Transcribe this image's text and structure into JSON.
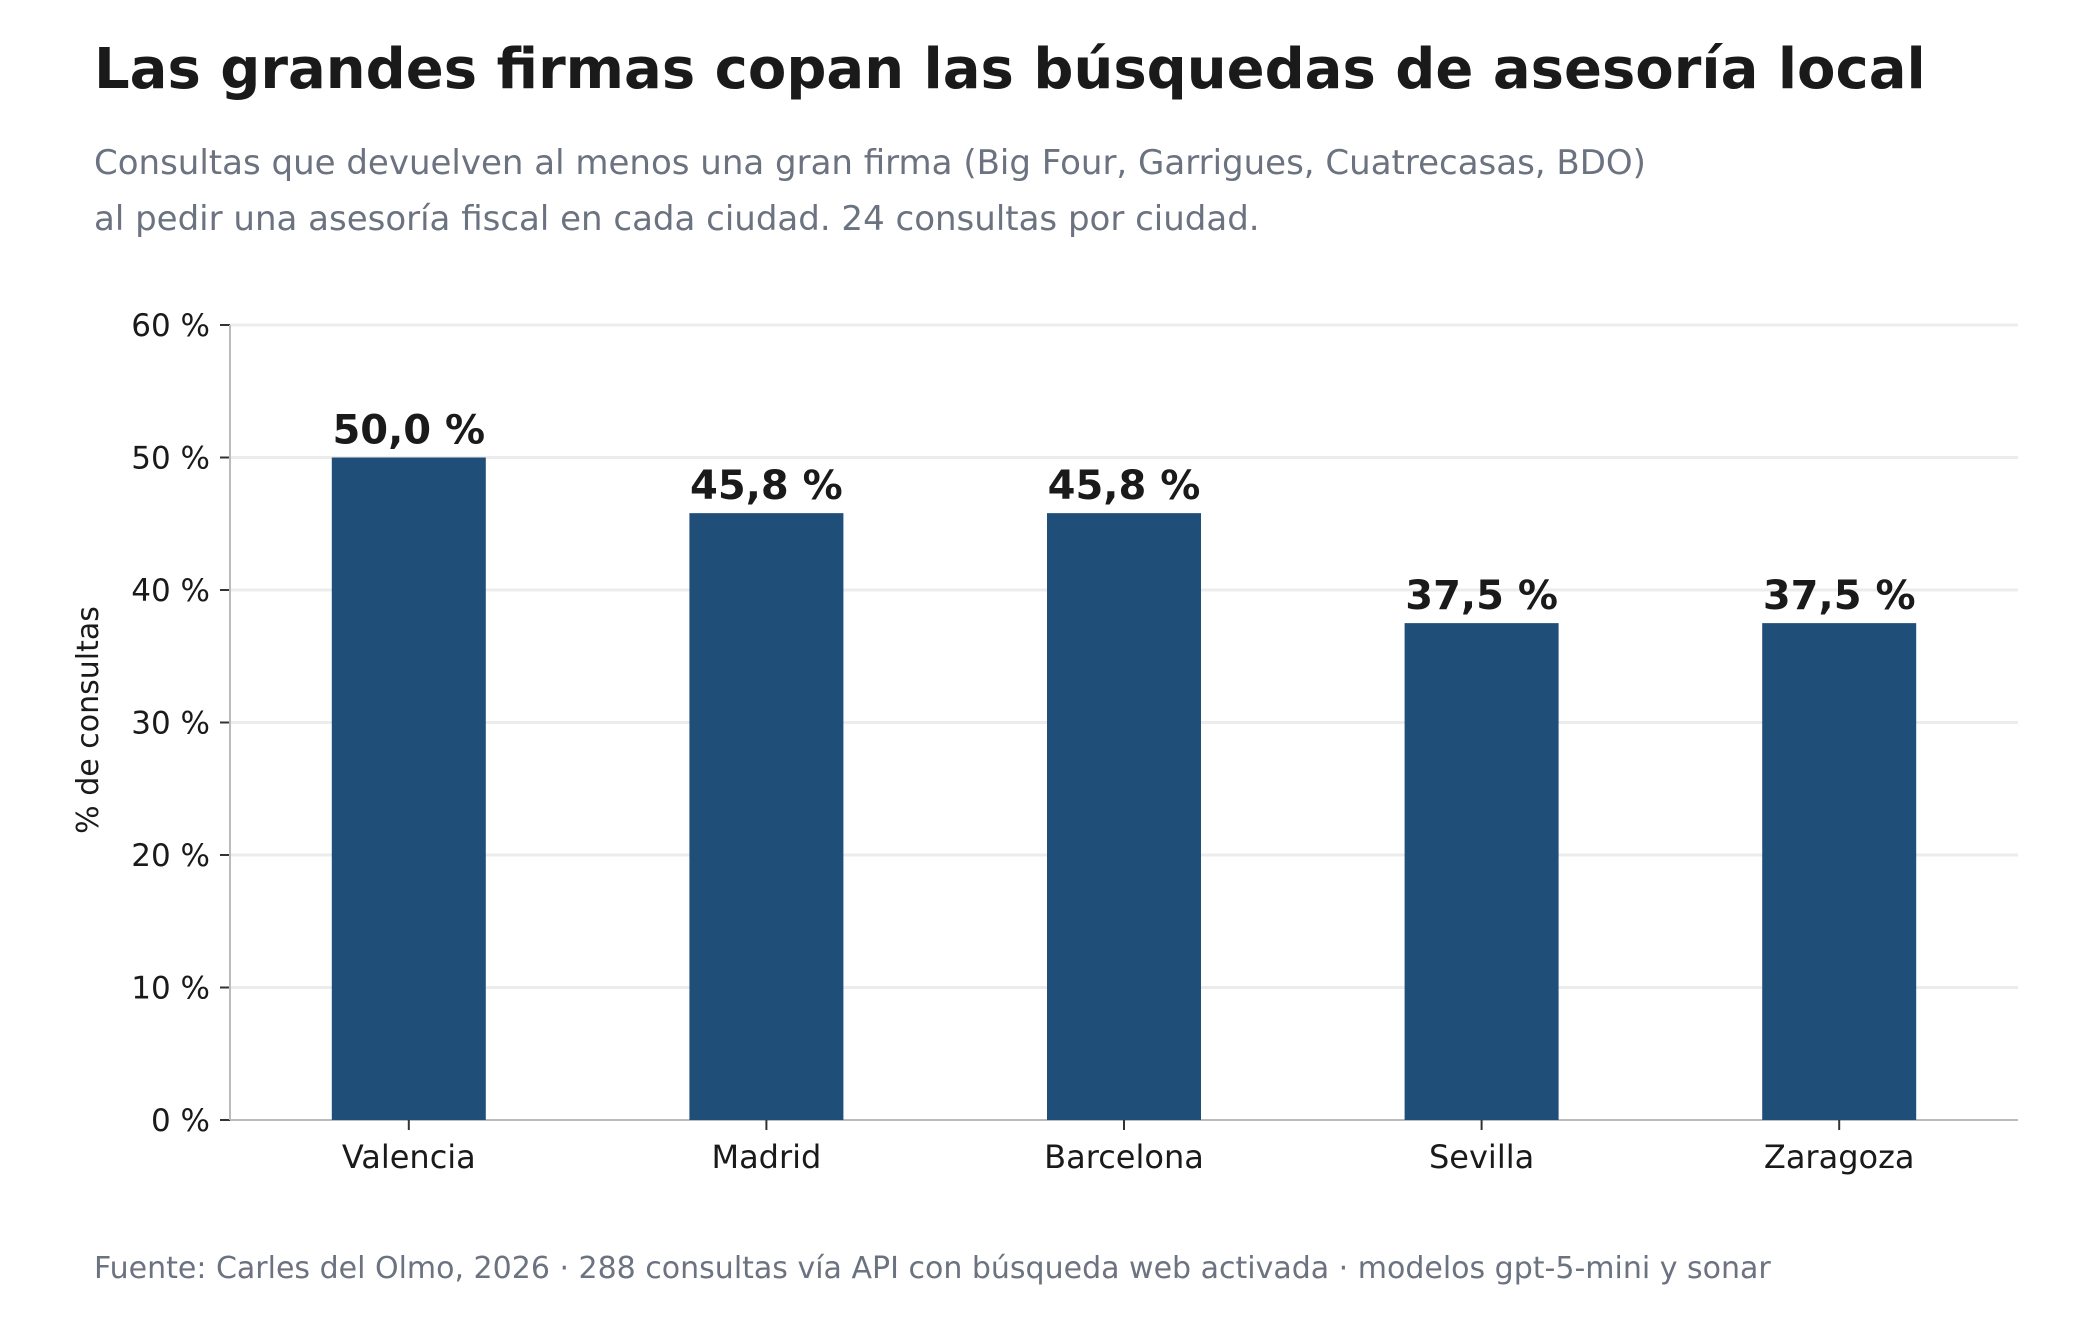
{
  "header": {
    "title": "Las grandes firmas copan las búsquedas de asesoría local",
    "subtitle_line1": "Consultas que devuelven al menos una gran firma (Big Four, Garrigues, Cuatrecasas, BDO)",
    "subtitle_line2": "al pedir una asesoría fiscal en cada ciudad. 24 consultas por ciudad."
  },
  "footer": {
    "source": "Fuente: Carles del Olmo, 2026 · 288 consultas vía API con búsqueda web activada · modelos gpt-5-mini y sonar"
  },
  "colors": {
    "bar": "#1f4e79",
    "grid": "#ececec",
    "axis": "#bbbbbb"
  },
  "chart_data": {
    "type": "bar",
    "categories": [
      "Valencia",
      "Madrid",
      "Barcelona",
      "Sevilla",
      "Zaragoza"
    ],
    "values": [
      50.0,
      45.8,
      45.8,
      37.5,
      37.5
    ],
    "value_labels": [
      "50,0 %",
      "45,8 %",
      "45,8 %",
      "37,5 %",
      "37,5 %"
    ],
    "ylabel": "% de consultas",
    "xlabel": "",
    "ylim": [
      0,
      60
    ],
    "yticks": [
      0,
      10,
      20,
      30,
      40,
      50,
      60
    ],
    "ytick_labels": [
      "0 %",
      "10 %",
      "20 %",
      "30 %",
      "40 %",
      "50 %",
      "60 %"
    ],
    "grid": true,
    "legend": "none"
  }
}
